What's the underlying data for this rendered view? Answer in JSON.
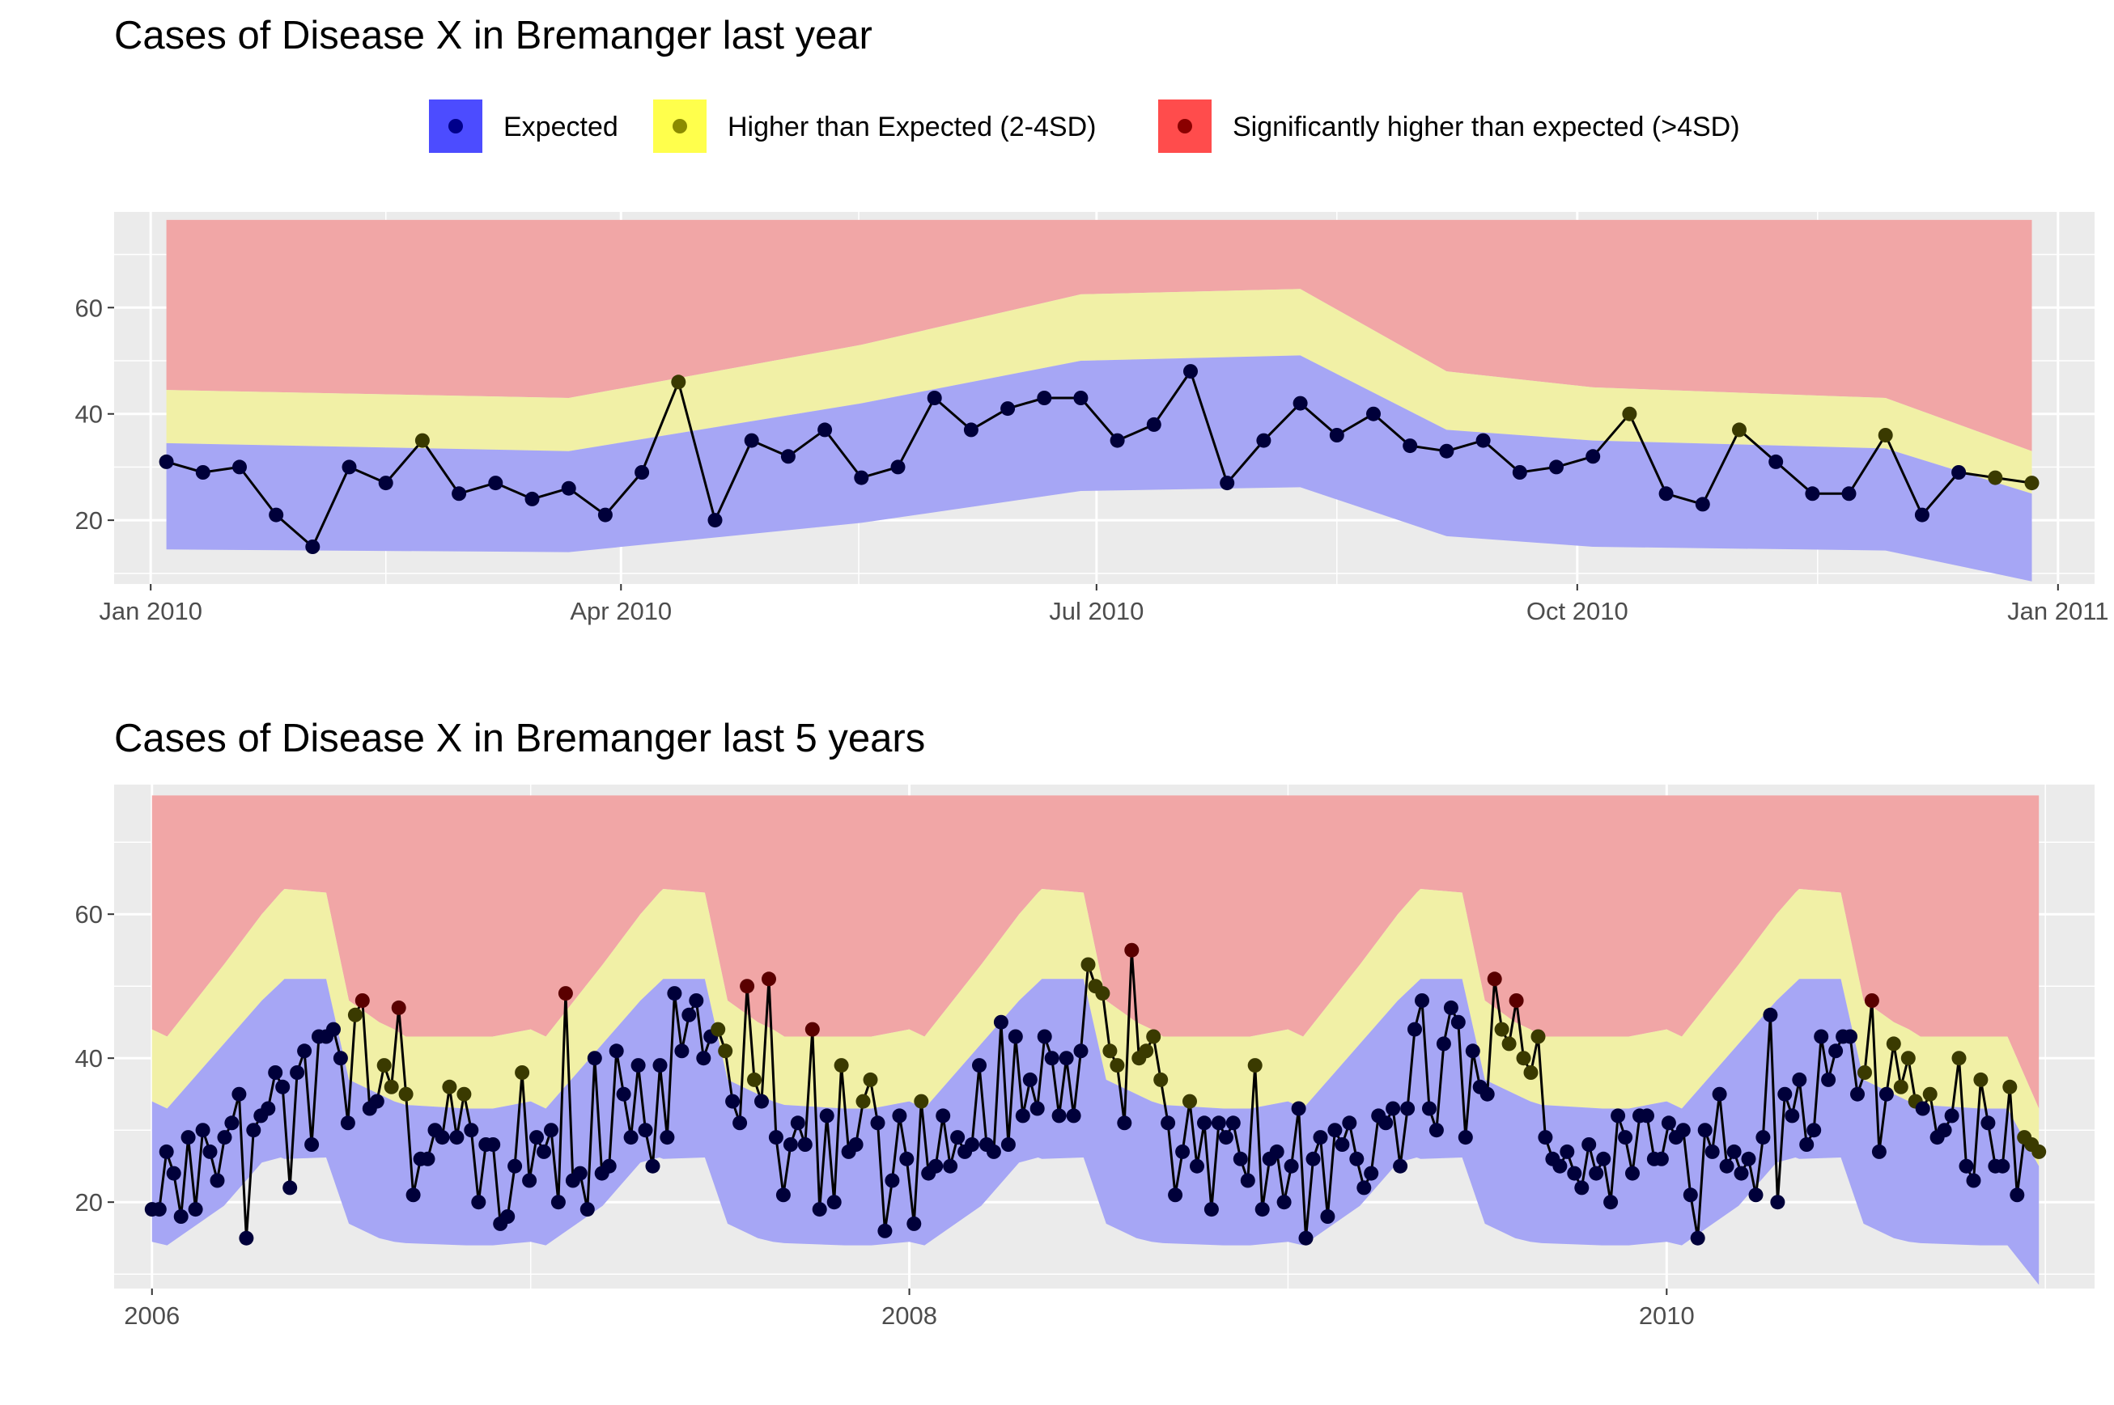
{
  "legend": {
    "items": [
      {
        "label": "Expected",
        "fill": "#4c4cff",
        "dot": "#00008b"
      },
      {
        "label": "Higher than Expected (2-4SD)",
        "fill": "#ffff4c",
        "dot": "#8b8b00"
      },
      {
        "label": "Significantly higher than expected (>4SD)",
        "fill": "#ff4c4c",
        "dot": "#8b0000"
      }
    ]
  },
  "colors": {
    "panel": "#ebebeb",
    "grid": "#ffffff",
    "expected_band": "#a6a6f5",
    "higher_band": "#f1f0a6",
    "significant_band": "#f1a6a6",
    "line": "#000000"
  },
  "chart_data": [
    {
      "type": "line",
      "title": "Cases of Disease X in Bremanger last year",
      "xlabel": "",
      "ylabel": "",
      "x_unit": "week",
      "xlim": [
        "2009-12-25",
        "2011-01-08"
      ],
      "ylim": [
        8,
        78
      ],
      "x_ticks": [
        {
          "label": "Jan 2010",
          "date": "2010-01-01"
        },
        {
          "label": "Apr 2010",
          "date": "2010-04-01"
        },
        {
          "label": "Jul 2010",
          "date": "2010-07-01"
        },
        {
          "label": "Oct 2010",
          "date": "2010-10-01"
        },
        {
          "label": "Jan 2011",
          "date": "2011-01-01"
        }
      ],
      "y_ticks": [
        20,
        40,
        60
      ],
      "legend_position": "top",
      "grid": true,
      "bands": {
        "x": [
          "2010-01-04",
          "2010-03-22",
          "2010-05-17",
          "2010-06-28",
          "2010-08-09",
          "2010-09-06",
          "2010-10-04",
          "2010-11-29",
          "2010-12-27"
        ],
        "lower": [
          14.5,
          14.0,
          19.5,
          25.5,
          26.2,
          17.0,
          15.0,
          14.3,
          8.5
        ],
        "expected_upper": [
          34.5,
          33.0,
          42.0,
          50.0,
          51.0,
          37.0,
          35.0,
          33.5,
          25.0
        ],
        "higher_upper": [
          44.5,
          43.0,
          53.0,
          62.5,
          63.5,
          48.0,
          45.0,
          43.0,
          33.0
        ],
        "significant_upper": [
          76.5,
          76.5,
          76.5,
          76.5,
          76.5,
          76.5,
          76.5,
          76.5,
          76.5
        ]
      },
      "series": [
        {
          "x": [
            "2010-01-04",
            "2010-01-11",
            "2010-01-18",
            "2010-01-25",
            "2010-02-01",
            "2010-02-08",
            "2010-02-15",
            "2010-02-22",
            "2010-03-01",
            "2010-03-08",
            "2010-03-15",
            "2010-03-22",
            "2010-03-29",
            "2010-04-05",
            "2010-04-12",
            "2010-04-19",
            "2010-04-26",
            "2010-05-03",
            "2010-05-10",
            "2010-05-17",
            "2010-05-24",
            "2010-05-31",
            "2010-06-07",
            "2010-06-14",
            "2010-06-21",
            "2010-06-28",
            "2010-07-05",
            "2010-07-12",
            "2010-07-19",
            "2010-07-26",
            "2010-08-02",
            "2010-08-09",
            "2010-08-16",
            "2010-08-23",
            "2010-08-30",
            "2010-09-06",
            "2010-09-13",
            "2010-09-20",
            "2010-09-27",
            "2010-10-04",
            "2010-10-11",
            "2010-10-18",
            "2010-10-25",
            "2010-11-01",
            "2010-11-08",
            "2010-11-15",
            "2010-11-22",
            "2010-11-29",
            "2010-12-06",
            "2010-12-13",
            "2010-12-20",
            "2010-12-27"
          ],
          "values": [
            31,
            29,
            30,
            21,
            15,
            30,
            27,
            35,
            25,
            27,
            24,
            26,
            21,
            29,
            46,
            20,
            35,
            32,
            37,
            28,
            30,
            43,
            37,
            41,
            43,
            43,
            35,
            38,
            48,
            27,
            35,
            42,
            36,
            40,
            34,
            33,
            35,
            29,
            30,
            32,
            40,
            25,
            23,
            37,
            31,
            25,
            25,
            36,
            21,
            29,
            28,
            27
          ]
        }
      ]
    },
    {
      "type": "line",
      "title": "Cases of Disease X in Bremanger last 5 years",
      "xlabel": "",
      "ylabel": "",
      "x_unit": "year",
      "xlim": [
        2005.9,
        2011.13
      ],
      "ylim": [
        8,
        78
      ],
      "x_ticks": [
        {
          "label": "2006",
          "value": 2006
        },
        {
          "label": "2008",
          "value": 2008
        },
        {
          "label": "2010",
          "value": 2010
        }
      ],
      "y_ticks": [
        20,
        40,
        60
      ],
      "legend_position": "top",
      "grid": true,
      "band_profile": {
        "x": [
          0.0,
          0.04,
          0.19,
          0.29,
          0.34,
          0.35,
          0.46,
          0.52,
          0.6,
          0.64,
          0.67,
          0.83,
          0.9,
          1.0
        ],
        "lower": [
          14.5,
          14.0,
          19.5,
          25.5,
          26.2,
          26.0,
          26.2,
          17.0,
          15.0,
          14.5,
          14.3,
          14.0,
          14.0,
          14.5
        ],
        "expected_upper": [
          34.0,
          33.0,
          42.0,
          48.0,
          50.5,
          51.0,
          51.0,
          37.0,
          35.0,
          34.0,
          33.5,
          33.0,
          33.0,
          34.0
        ],
        "higher_upper": [
          44.0,
          43.0,
          53.0,
          60.0,
          63.0,
          63.5,
          63.0,
          48.0,
          45.0,
          44.0,
          43.0,
          43.0,
          43.0,
          44.0
        ],
        "final_expected_upper": 25.0,
        "final_higher_upper": 33.0,
        "final_lower": 8.5
      },
      "significant_upper": 76.5,
      "series": [
        {
          "x_start": 2006.0,
          "x_step_weeks": 1,
          "values": [
            19,
            19,
            27,
            24,
            18,
            29,
            19,
            30,
            27,
            23,
            29,
            31,
            35,
            15,
            30,
            32,
            33,
            38,
            36,
            22,
            38,
            41,
            28,
            43,
            43,
            44,
            40,
            31,
            46,
            48,
            33,
            34,
            39,
            36,
            47,
            35,
            21,
            26,
            26,
            30,
            29,
            36,
            29,
            35,
            30,
            20,
            28,
            28,
            17,
            18,
            25,
            38,
            23,
            29,
            27,
            30,
            20,
            49,
            23,
            24,
            19,
            40,
            24,
            25,
            41,
            35,
            29,
            39,
            30,
            25,
            39,
            29,
            49,
            41,
            46,
            48,
            40,
            43,
            44,
            41,
            34,
            31,
            50,
            37,
            34,
            51,
            29,
            21,
            28,
            31,
            28,
            44,
            19,
            32,
            20,
            39,
            27,
            28,
            34,
            37,
            31,
            16,
            23,
            32,
            26,
            17,
            34,
            24,
            25,
            32,
            25,
            29,
            27,
            28,
            39,
            28,
            27,
            45,
            28,
            43,
            32,
            37,
            33,
            43,
            40,
            32,
            40,
            32,
            41,
            53,
            50,
            49,
            41,
            39,
            31,
            55,
            40,
            41,
            43,
            37,
            31,
            21,
            27,
            34,
            25,
            31,
            19,
            31,
            29,
            31,
            26,
            23,
            39,
            19,
            26,
            27,
            20,
            25,
            33,
            15,
            26,
            29,
            18,
            30,
            28,
            31,
            26,
            22,
            24,
            32,
            31,
            33,
            25,
            33,
            44,
            48,
            33,
            30,
            42,
            47,
            45,
            29,
            41,
            36,
            35,
            51,
            44,
            42,
            48,
            40,
            38,
            43,
            29,
            26,
            25,
            27,
            24,
            22,
            28,
            24,
            26,
            20,
            32,
            29,
            24,
            32,
            32,
            26,
            26,
            31,
            29,
            30,
            21,
            15,
            30,
            27,
            35,
            25,
            27,
            24,
            26,
            21,
            29,
            46,
            20,
            35,
            32,
            37,
            28,
            30,
            43,
            37,
            41,
            43,
            43,
            35,
            38,
            48,
            27,
            35,
            42,
            36,
            40,
            34,
            33,
            35,
            29,
            30,
            32,
            40,
            25,
            23,
            37,
            31,
            25,
            25,
            36,
            21,
            29,
            28,
            27
          ]
        }
      ]
    }
  ]
}
